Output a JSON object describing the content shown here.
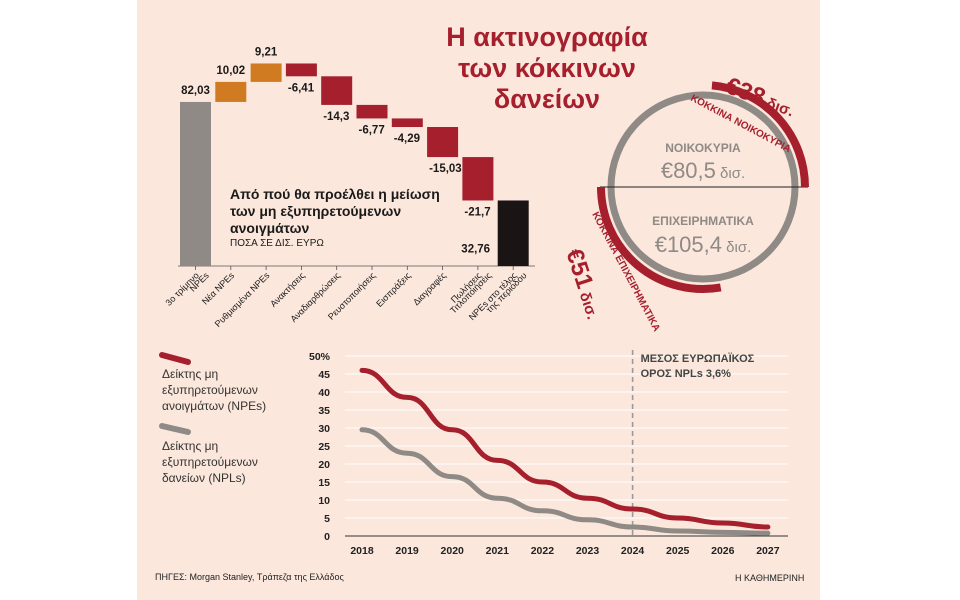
{
  "title": "Η ακτινογραφία των κόκκινων δανείων",
  "colors": {
    "red": "#a51f2d",
    "gray": "#8f8a85",
    "orange": "#d07a22",
    "black": "#1a1414",
    "panel": "#fbe7dc"
  },
  "chart_data": [
    {
      "type": "bar",
      "subtype": "waterfall",
      "title": "Από πού θα προέλθει η μείωση των μη εξυπηρετούμενων ανοιγμάτων",
      "unit": "ΠΟΣΑ ΣΕ ΔΙΣ. ΕΥΡΩ",
      "categories": [
        "3ο τρίμηνο NPEs",
        "Νέα NPEs",
        "Ρυθμισμένα NPEs",
        "Ανακτήσεις",
        "Αναδιαρθρώσεις",
        "Ρευστοποιήσεις",
        "Εισπράξεις",
        "Διαγραφές",
        "Πωλήσεις Τιτλοποιήσεις",
        "NPEs στο τέλος της περιόδου"
      ],
      "values": [
        82.03,
        10.02,
        9.21,
        -6.41,
        -14.3,
        -6.77,
        -4.29,
        -15.03,
        -21.7,
        32.76
      ],
      "labels": [
        "82,03",
        "10,02",
        "9,21",
        "-6,41",
        "-14,3",
        "-6,77",
        "-4,29",
        "-15,03",
        "-21,7",
        "32,76"
      ],
      "kinds": [
        "total",
        "increase",
        "increase",
        "decrease",
        "decrease",
        "decrease",
        "decrease",
        "decrease",
        "decrease",
        "total"
      ]
    },
    {
      "type": "pie",
      "subtype": "ring",
      "slices": [
        {
          "name": "ΝΟΙΚΟΚΥΡΙΑ",
          "total_label": "€80,5",
          "total": 80.5,
          "red_label": "€38",
          "red": 38,
          "red_caption": "ΚΟΚΚΙΝΑ ΝΟΙΚΟΚΥΡΙΑ"
        },
        {
          "name": "ΕΠΙΧΕΙΡΗΜΑΤΙΚΑ",
          "total_label": "€105,4",
          "total": 105.4,
          "red_label": "€51",
          "red": 51,
          "red_caption": "ΚΟΚΚΙΝΑ ΕΠΙΧΕΙΡΗΜΑΤΙΚΑ"
        }
      ],
      "unit_word": "δισ."
    },
    {
      "type": "line",
      "x": [
        2018,
        2019,
        2020,
        2021,
        2022,
        2023,
        2024,
        2025,
        2026,
        2027
      ],
      "ylim": [
        0,
        50
      ],
      "yticks": [
        "0",
        "5",
        "10",
        "15",
        "20",
        "25",
        "30",
        "35",
        "40",
        "45",
        "50%"
      ],
      "series": [
        {
          "name": "Δείκτης μη εξυπηρετούμενων ανοιγμάτων (NPEs)",
          "values": [
            46,
            38.5,
            29.5,
            21,
            15,
            10.5,
            7.5,
            5,
            3.6,
            2.5
          ]
        },
        {
          "name": "Δείκτης μη εξυπηρετούμενων δανείων (NPLs)",
          "values": [
            29.5,
            23,
            16.5,
            10.5,
            7,
            4.5,
            2.5,
            1.4,
            1,
            0.8
          ]
        }
      ],
      "annotation": {
        "x": 2024,
        "text": [
          "ΜΕΣΟΣ ΕΥΡΩΠΑΪΚΟΣ",
          "ΟΡΟΣ NPLs 3,6%"
        ]
      }
    }
  ],
  "legend": {
    "npe": [
      "Δείκτης μη",
      "εξυπηρετούμενων",
      "ανοιγμάτων (NPEs)"
    ],
    "npl": [
      "Δείκτης μη",
      "εξυπηρετούμενων",
      "δανείων (NPLs)"
    ]
  },
  "wf_note": "Από πού θα προέλθει η μείωση των μη εξυπηρετούμενων ανοιγμάτων",
  "source": "ΠΗΓΕΣ: Morgan Stanley, Τράπεζα της Ελλάδος",
  "brand": "Η ΚΑΘΗΜΕΡΙΝΗ"
}
